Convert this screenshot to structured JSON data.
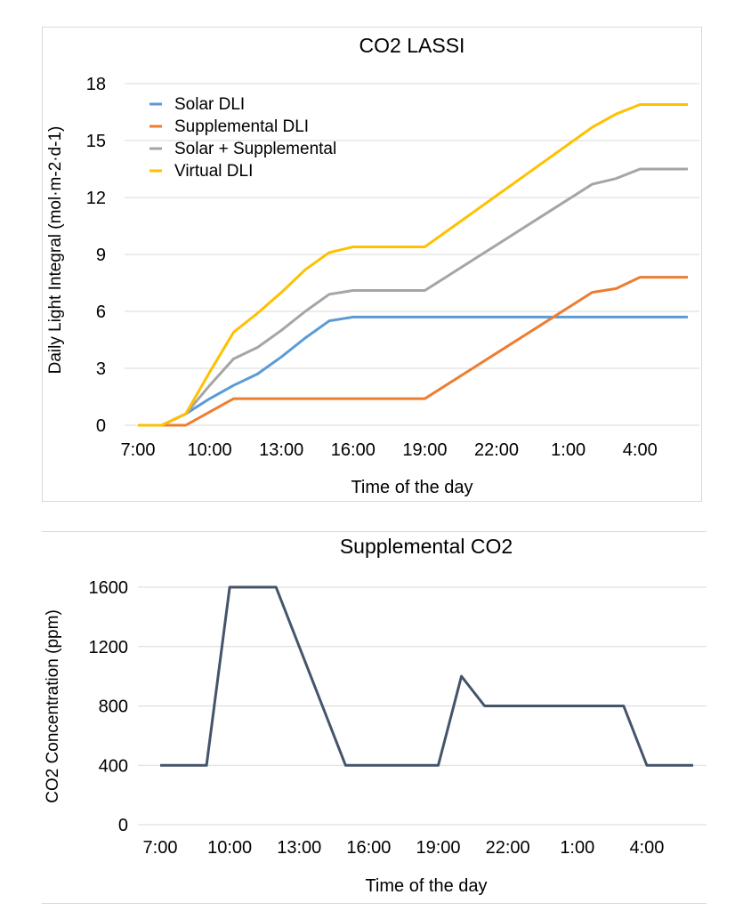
{
  "chart_data": [
    {
      "type": "line",
      "title": "CO2 LASSI",
      "xlabel": "Time of the day",
      "ylabel": "Daily Light Integral (mol·m-2·d-1)",
      "ylim": [
        0,
        18
      ],
      "yticks": [
        "0",
        "3",
        "6",
        "9",
        "12",
        "15",
        "18"
      ],
      "grid": true,
      "legend_position": "top-left",
      "x": [
        "7:00",
        "8:00",
        "9:00",
        "10:00",
        "11:00",
        "12:00",
        "13:00",
        "14:00",
        "15:00",
        "16:00",
        "17:00",
        "18:00",
        "19:00",
        "20:00",
        "21:00",
        "22:00",
        "23:00",
        "0:00",
        "1:00",
        "2:00",
        "3:00",
        "4:00",
        "5:00",
        "6:00"
      ],
      "xticks": [
        "7:00",
        "10:00",
        "13:00",
        "16:00",
        "19:00",
        "22:00",
        "1:00",
        "4:00"
      ],
      "series": [
        {
          "name": "Solar DLI",
          "color": "#5b9bd5",
          "values": [
            0,
            0,
            0.6,
            1.4,
            2.1,
            2.7,
            3.6,
            4.6,
            5.5,
            5.7,
            5.7,
            5.7,
            5.7,
            5.7,
            5.7,
            5.7,
            5.7,
            5.7,
            5.7,
            5.7,
            5.7,
            5.7,
            5.7,
            5.7
          ]
        },
        {
          "name": "Supplemental DLI",
          "color": "#ed7d31",
          "values": [
            0,
            0,
            0,
            0.7,
            1.4,
            1.4,
            1.4,
            1.4,
            1.4,
            1.4,
            1.4,
            1.4,
            1.4,
            2.2,
            3.0,
            3.8,
            4.6,
            5.4,
            6.2,
            7.0,
            7.2,
            7.8,
            7.8,
            7.8
          ]
        },
        {
          "name": "Solar + Supplemental",
          "color": "#a5a5a5",
          "values": [
            0,
            0,
            0.6,
            2.1,
            3.5,
            4.1,
            5.0,
            6.0,
            6.9,
            7.1,
            7.1,
            7.1,
            7.1,
            7.9,
            8.7,
            9.5,
            10.3,
            11.1,
            11.9,
            12.7,
            13.0,
            13.5,
            13.5,
            13.5
          ]
        },
        {
          "name": "Virtual DLI",
          "color": "#ffc000",
          "values": [
            0,
            0,
            0.6,
            2.8,
            4.9,
            5.9,
            7.0,
            8.2,
            9.1,
            9.4,
            9.4,
            9.4,
            9.4,
            10.3,
            11.2,
            12.1,
            13.0,
            13.9,
            14.8,
            15.7,
            16.4,
            16.9,
            16.9,
            16.9
          ]
        }
      ]
    },
    {
      "type": "line",
      "title": "Supplemental CO2",
      "xlabel": "Time of the day",
      "ylabel": "CO2 Concentration (ppm)",
      "ylim": [
        0,
        1600
      ],
      "yticks": [
        "0",
        "400",
        "800",
        "1200",
        "1600"
      ],
      "grid": true,
      "x": [
        "7:00",
        "8:00",
        "9:00",
        "10:00",
        "11:00",
        "12:00",
        "13:00",
        "14:00",
        "15:00",
        "16:00",
        "17:00",
        "18:00",
        "19:00",
        "20:00",
        "21:00",
        "22:00",
        "23:00",
        "0:00",
        "1:00",
        "2:00",
        "3:00",
        "4:00",
        "5:00",
        "6:00"
      ],
      "xticks": [
        "7:00",
        "10:00",
        "13:00",
        "16:00",
        "19:00",
        "22:00",
        "1:00",
        "4:00"
      ],
      "series": [
        {
          "name": "",
          "color": "#44546a",
          "values": [
            400,
            400,
            400,
            1600,
            1600,
            1600,
            1200,
            800,
            400,
            400,
            400,
            400,
            400,
            1000,
            800,
            800,
            800,
            800,
            800,
            800,
            800,
            400,
            400,
            400
          ]
        }
      ]
    }
  ]
}
